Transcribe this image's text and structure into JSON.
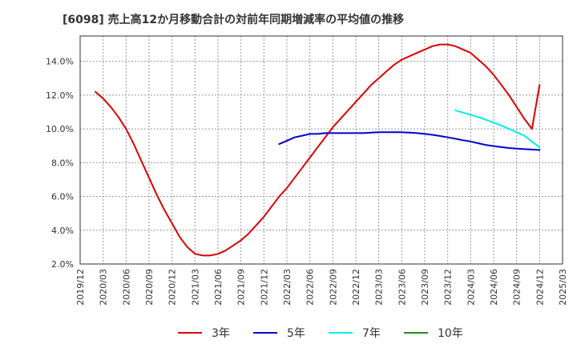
{
  "title": "[6098]  売上高12か月移動合計の対前年同期増減率の平均値の推移",
  "chart_data": {
    "type": "line",
    "title": "[6098]  売上高12か月移動合計の対前年同期増減率の平均値の推移",
    "xlabel": "",
    "ylabel": "",
    "ylim": [
      2.0,
      15.5
    ],
    "yticks": [
      "2.0%",
      "4.0%",
      "6.0%",
      "8.0%",
      "10.0%",
      "12.0%",
      "14.0%"
    ],
    "ytick_values": [
      2,
      4,
      6,
      8,
      10,
      12,
      14
    ],
    "xticks": [
      "2019/12",
      "2020/03",
      "2020/06",
      "2020/09",
      "2020/12",
      "2021/03",
      "2021/06",
      "2021/09",
      "2021/12",
      "2022/03",
      "2022/06",
      "2022/09",
      "2022/12",
      "2023/03",
      "2023/06",
      "2023/09",
      "2023/12",
      "2024/03",
      "2024/06",
      "2024/09",
      "2024/12",
      "2025/03"
    ],
    "grid": true,
    "legend_position": "bottom",
    "series": [
      {
        "name": "3年",
        "color": "#dd0000",
        "x": [
          "2020/02",
          "2020/03",
          "2020/04",
          "2020/05",
          "2020/06",
          "2020/07",
          "2020/08",
          "2020/09",
          "2020/10",
          "2020/11",
          "2020/12",
          "2021/01",
          "2021/02",
          "2021/03",
          "2021/04",
          "2021/05",
          "2021/06",
          "2021/07",
          "2021/08",
          "2021/09",
          "2021/10",
          "2021/11",
          "2021/12",
          "2022/01",
          "2022/02",
          "2022/03",
          "2022/04",
          "2022/05",
          "2022/06",
          "2022/07",
          "2022/08",
          "2022/09",
          "2022/10",
          "2022/11",
          "2022/12",
          "2023/01",
          "2023/02",
          "2023/03",
          "2023/04",
          "2023/05",
          "2023/06",
          "2023/07",
          "2023/08",
          "2023/09",
          "2023/10",
          "2023/11",
          "2023/12",
          "2024/01",
          "2024/02",
          "2024/03",
          "2024/04",
          "2024/05",
          "2024/06",
          "2024/07",
          "2024/08",
          "2024/09",
          "2024/10",
          "2024/11",
          "2024/12"
        ],
        "values": [
          12.2,
          11.8,
          11.3,
          10.7,
          10.0,
          9.1,
          8.1,
          7.1,
          6.1,
          5.2,
          4.4,
          3.6,
          3.0,
          2.6,
          2.5,
          2.5,
          2.6,
          2.8,
          3.1,
          3.4,
          3.8,
          4.3,
          4.8,
          5.4,
          6.0,
          6.5,
          7.1,
          7.7,
          8.3,
          8.9,
          9.5,
          10.1,
          10.6,
          11.1,
          11.6,
          12.1,
          12.6,
          13.0,
          13.4,
          13.8,
          14.1,
          14.3,
          14.5,
          14.7,
          14.9,
          15.0,
          15.0,
          14.9,
          14.7,
          14.5,
          14.1,
          13.7,
          13.2,
          12.6,
          12.0,
          11.3,
          10.6,
          10.0,
          12.6
        ],
        "note": ""
      },
      {
        "name": "5年",
        "color": "#0000cc",
        "x": [
          "2022/02",
          "2022/03",
          "2022/04",
          "2022/05",
          "2022/06",
          "2022/07",
          "2022/08",
          "2022/09",
          "2022/10",
          "2022/11",
          "2022/12",
          "2023/01",
          "2023/02",
          "2023/03",
          "2023/04",
          "2023/05",
          "2023/06",
          "2023/07",
          "2023/08",
          "2023/09",
          "2023/10",
          "2023/11",
          "2023/12",
          "2024/01",
          "2024/02",
          "2024/03",
          "2024/04",
          "2024/05",
          "2024/06",
          "2024/07",
          "2024/08",
          "2024/09",
          "2024/10",
          "2024/11",
          "2024/12"
        ],
        "values": [
          9.1,
          9.3,
          9.5,
          9.6,
          9.7,
          9.7,
          9.75,
          9.75,
          9.75,
          9.75,
          9.75,
          9.75,
          9.78,
          9.8,
          9.8,
          9.8,
          9.8,
          9.78,
          9.75,
          9.7,
          9.65,
          9.58,
          9.5,
          9.42,
          9.33,
          9.25,
          9.15,
          9.05,
          8.98,
          8.92,
          8.87,
          8.83,
          8.8,
          8.78,
          8.75
        ]
      },
      {
        "name": "7年",
        "color": "#00eeee",
        "x": [
          "2024/01",
          "2024/04",
          "2024/07",
          "2024/10",
          "2024/12"
        ],
        "values": [
          11.1,
          10.7,
          10.2,
          9.6,
          8.9
        ]
      },
      {
        "name": "10年",
        "color": "#228b22",
        "x": [],
        "values": []
      }
    ]
  }
}
